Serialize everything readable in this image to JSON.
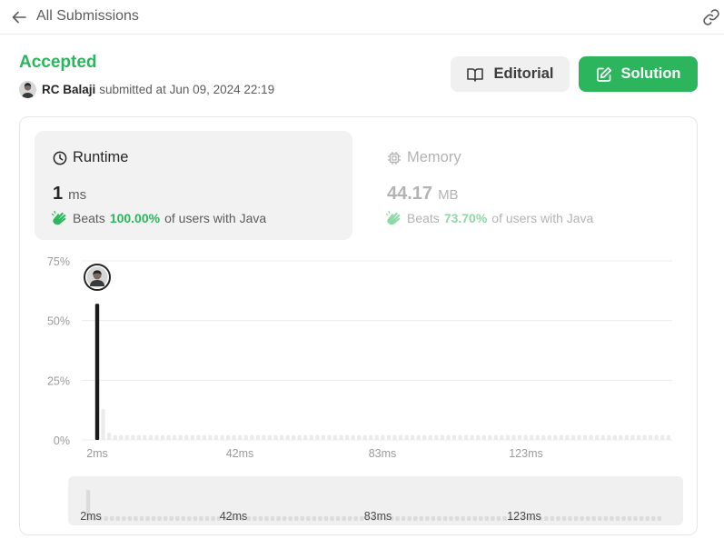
{
  "topbar": {
    "back_label": "All Submissions"
  },
  "submission": {
    "status": "Accepted",
    "username": "RC Balaji",
    "submitted_text": "submitted at Jun 09, 2024 22:19"
  },
  "buttons": {
    "editorial_label": "Editorial",
    "solution_label": "Solution"
  },
  "runtime": {
    "title": "Runtime",
    "value": "1",
    "unit": "ms",
    "beats_prefix": "Beats",
    "beats_pct": "100.00%",
    "beats_suffix": "of users with Java"
  },
  "memory": {
    "title": "Memory",
    "value": "44.17",
    "unit": "MB",
    "beats_prefix": "Beats",
    "beats_pct": "73.70%",
    "beats_suffix": "of users with Java"
  },
  "colors": {
    "accent": "#2db55d",
    "selected_bar": "#1a1a1a",
    "bar": "#ebebeb"
  },
  "chart_data": {
    "type": "bar",
    "y_ticks": [
      "75%",
      "50%",
      "25%",
      "0%"
    ],
    "ylim": [
      0,
      75
    ],
    "x_ticks": [
      "2ms",
      "42ms",
      "83ms",
      "123ms"
    ],
    "values": [
      57,
      13,
      3,
      2,
      2,
      2,
      2,
      2,
      2,
      2,
      2,
      2,
      2,
      2,
      2,
      2,
      2,
      2,
      2,
      2,
      2,
      2,
      2,
      2,
      2,
      2,
      2,
      2,
      2,
      2,
      2,
      2,
      2,
      2,
      2,
      2,
      2,
      2,
      2,
      2,
      2,
      2,
      2,
      2,
      2,
      2,
      2,
      2,
      2,
      2,
      2,
      2,
      2,
      2,
      2,
      2,
      2,
      2,
      2,
      2,
      2,
      2,
      2,
      2,
      2,
      2,
      2,
      2,
      2,
      2,
      2,
      2,
      2,
      2,
      2,
      2,
      2,
      2,
      2,
      2,
      2,
      2,
      2,
      2,
      2,
      2,
      2,
      2,
      2,
      2,
      2,
      2,
      2,
      2,
      2,
      2,
      2
    ],
    "highlighted_index": 0,
    "grid": true
  },
  "brush": {
    "x_ticks": [
      "2ms",
      "42ms",
      "83ms",
      "123ms"
    ]
  }
}
